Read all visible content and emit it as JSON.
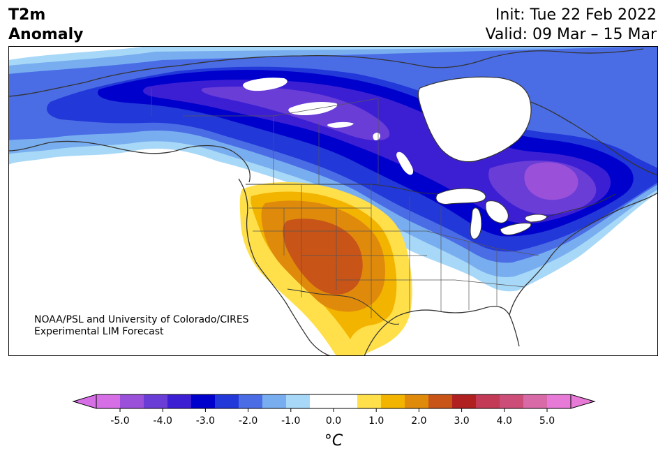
{
  "header": {
    "title_line1": "T2m",
    "title_line2": "Anomaly",
    "init_label": "Init: Tue 22 Feb 2022",
    "valid_label": "Valid: 09 Mar – 15 Mar"
  },
  "credit": {
    "line1": "NOAA/PSL and University of Colorado/CIRES",
    "line2": "Experimental LIM Forecast"
  },
  "colorbar": {
    "unit_label": "°C",
    "tick_labels": [
      "-5.0",
      "-4.0",
      "-3.0",
      "-2.0",
      "-1.0",
      "0.0",
      "1.0",
      "2.0",
      "3.0",
      "4.0",
      "5.0"
    ],
    "colors": [
      "#d66fe6",
      "#9a50d9",
      "#6a3dd6",
      "#3d1fd3",
      "#0000cc",
      "#2238d8",
      "#4a6de6",
      "#78aef0",
      "#a8d8f7",
      "#ffffff",
      "#ffffff",
      "#ffe04a",
      "#f3b400",
      "#e08a0c",
      "#c85418",
      "#b02020",
      "#c23a55",
      "#cc4d78",
      "#d86aa8",
      "#e67ad6"
    ],
    "under_color": "#d66fe6",
    "over_color": "#e67ad6"
  },
  "map_colors": {
    "ocean": "#ffffff",
    "border": "#333333"
  }
}
